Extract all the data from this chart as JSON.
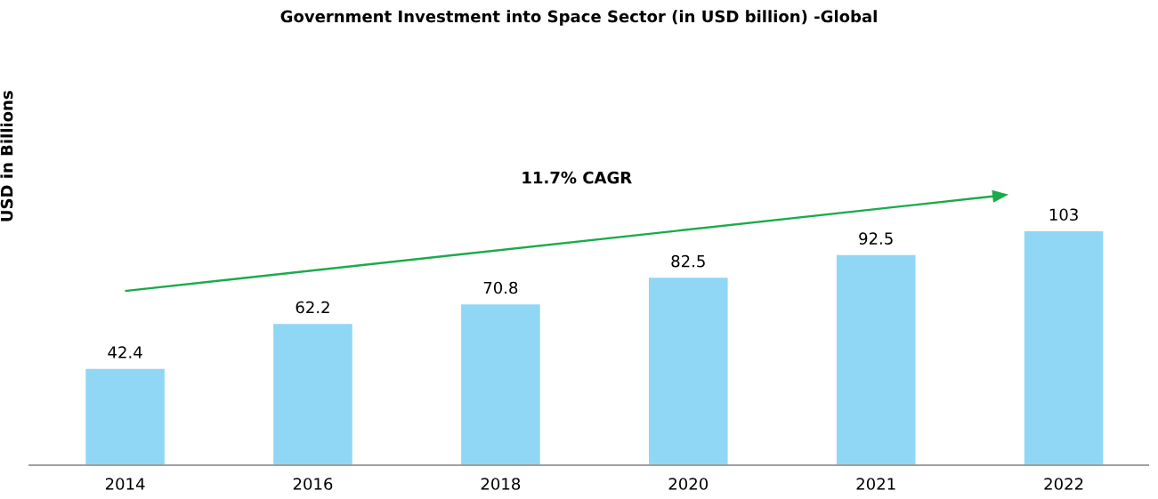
{
  "chart_data": {
    "type": "bar",
    "title": "Government Investment into Space Sector (in USD billion) -Global",
    "ylabel": "USD in Billions",
    "categories": [
      "2014",
      "2016",
      "2018",
      "2020",
      "2021",
      "2022"
    ],
    "values": [
      42.4,
      62.2,
      70.8,
      82.5,
      92.5,
      103
    ],
    "color": "#8fd7f5",
    "data_labels": true,
    "tick_labels": "x",
    "grid": false,
    "legend": false,
    "annotations": [
      "11.7% CAGR"
    ]
  }
}
